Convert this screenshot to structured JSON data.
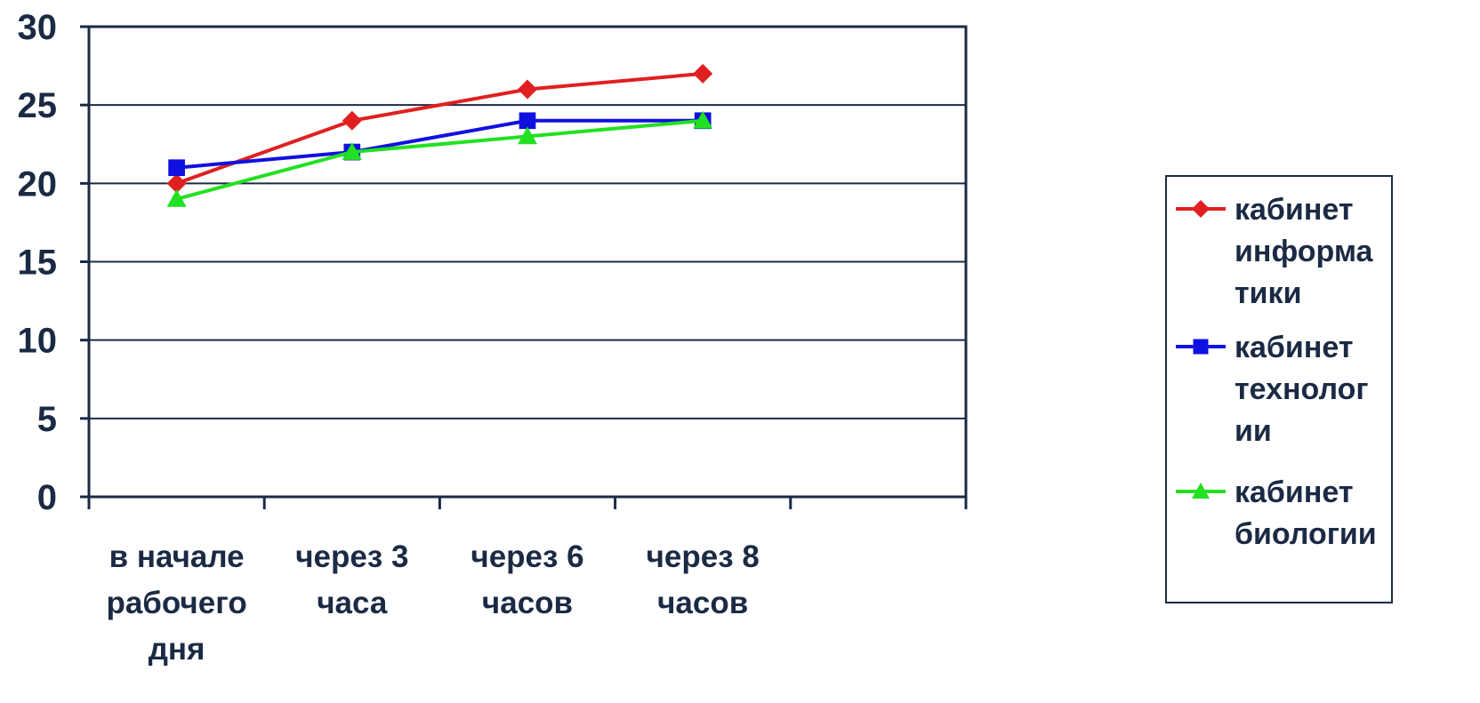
{
  "chart_data": {
    "type": "line",
    "title": "",
    "xlabel": "",
    "ylabel": "",
    "ylim": [
      0,
      30
    ],
    "y_ticks": [
      "0",
      "5",
      "10",
      "15",
      "20",
      "25",
      "30"
    ],
    "grid": true,
    "legend_position": "right",
    "categories": [
      [
        "в начале",
        "рабочего",
        "дня"
      ],
      [
        "через 3",
        "часа"
      ],
      [
        "через 6",
        "часов"
      ],
      [
        "через 8",
        "часов"
      ]
    ],
    "series": [
      {
        "name_lines": [
          "кабинет",
          "информа",
          "тики"
        ],
        "color": "#e02020",
        "marker": "diamond",
        "values": [
          20,
          24,
          26,
          27
        ]
      },
      {
        "name_lines": [
          "кабинет",
          "технолог",
          "ии"
        ],
        "color": "#1010e0",
        "marker": "square",
        "values": [
          21,
          22,
          24,
          24
        ]
      },
      {
        "name_lines": [
          "кабинет",
          "биологии"
        ],
        "color": "#22e022",
        "marker": "triangle",
        "values": [
          19,
          22,
          23,
          24
        ]
      }
    ]
  }
}
